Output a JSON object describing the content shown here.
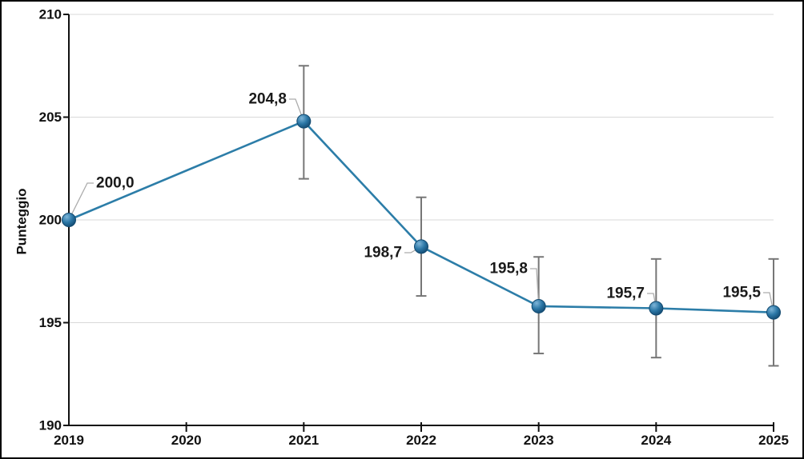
{
  "figure": {
    "background": "#ffffff",
    "border_color": "#000000"
  },
  "colors": {
    "line": "#2C7DA8",
    "marker_light": "#7EB5D8",
    "marker_mid": "#2B77A6",
    "marker_dark": "#144C74",
    "marker_edge": "#134A70",
    "error_bar": "#767676",
    "gridline": "#D9D9D9",
    "axis": "#111111",
    "label_text": "#1a1a1a",
    "leader_line": "#ACACAC"
  },
  "chart_data": {
    "type": "line",
    "title": "",
    "xlabel": "",
    "ylabel": "Punteggio",
    "categories": [
      "2019",
      "2020",
      "2021",
      "2022",
      "2023",
      "2024",
      "2025"
    ],
    "years": [
      2019,
      2020,
      2021,
      2022,
      2023,
      2024,
      2025
    ],
    "x_range": [
      2019,
      2025
    ],
    "ylim": [
      190,
      210
    ],
    "yticks": [
      190,
      195,
      200,
      205,
      210
    ],
    "grid": true,
    "legend": false,
    "error_bars": true,
    "series": [
      {
        "name": "Punteggio",
        "points": [
          {
            "x": 2019,
            "y": 200.0,
            "label": "200,0",
            "err_low": null,
            "err_high": null
          },
          {
            "x": 2021,
            "y": 204.8,
            "label": "204,8",
            "err_low": 202.0,
            "err_high": 207.5
          },
          {
            "x": 2022,
            "y": 198.7,
            "label": "198,7",
            "err_low": 196.3,
            "err_high": 201.1
          },
          {
            "x": 2023,
            "y": 195.8,
            "label": "195,8",
            "err_low": 193.5,
            "err_high": 198.2
          },
          {
            "x": 2024,
            "y": 195.7,
            "label": "195,7",
            "err_low": 193.3,
            "err_high": 198.1
          },
          {
            "x": 2025,
            "y": 195.5,
            "label": "195,5",
            "err_low": 192.9,
            "err_high": 198.1
          }
        ]
      }
    ]
  }
}
